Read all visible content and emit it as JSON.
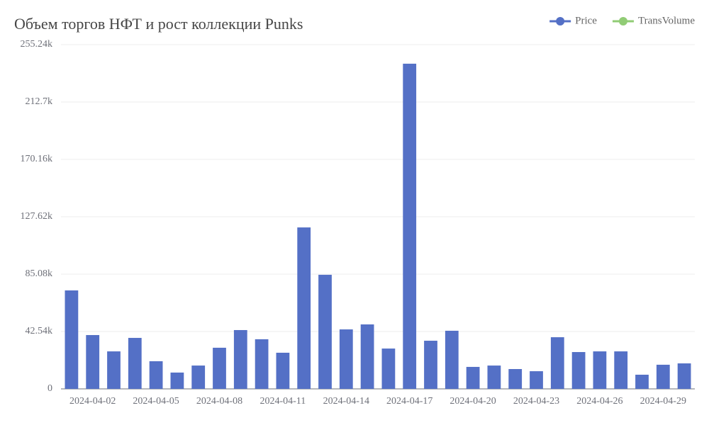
{
  "chart_data": {
    "type": "bar",
    "title": "Объем торгов НФТ и рост коллекции Punks",
    "categories": [
      null,
      "2024-04-02",
      null,
      null,
      "2024-04-05",
      null,
      null,
      "2024-04-08",
      null,
      null,
      "2024-04-11",
      null,
      null,
      "2024-04-14",
      null,
      null,
      "2024-04-17",
      null,
      null,
      "2024-04-20",
      null,
      null,
      "2024-04-23",
      null,
      null,
      "2024-04-26",
      null,
      null,
      "2024-04-29",
      null
    ],
    "series": [
      {
        "name": "Price",
        "color": "#5470c6",
        "values": [
          73000,
          39900,
          27800,
          37800,
          20500,
          12100,
          17300,
          30500,
          43600,
          36800,
          26800,
          119700,
          84600,
          44100,
          47800,
          29900,
          241100,
          35700,
          43100,
          16300,
          17300,
          14700,
          13100,
          38300,
          27300,
          27800,
          27800,
          10500,
          17900,
          18900
        ]
      },
      {
        "name": "TransVolume",
        "color": "#91cc75",
        "values": [
          null,
          null,
          null,
          null,
          null,
          null,
          null,
          null,
          null,
          null,
          null,
          null,
          null,
          null,
          null,
          null,
          null,
          null,
          null,
          null,
          null,
          null,
          null,
          null,
          null,
          null,
          null,
          null,
          null,
          null
        ]
      }
    ],
    "ylim": [
      0,
      255240
    ],
    "yticks": [
      0,
      {
        "value": 42540,
        "label": "42.54k"
      },
      {
        "value": 85080,
        "label": "85.08k"
      },
      {
        "value": 127620,
        "label": "127.62k"
      },
      {
        "value": 170160,
        "label": "170.16k"
      },
      {
        "value": 212700,
        "label": "212.7k"
      },
      {
        "value": 255240,
        "label": "255.24k"
      }
    ],
    "grid": true,
    "legend": "top-right"
  }
}
